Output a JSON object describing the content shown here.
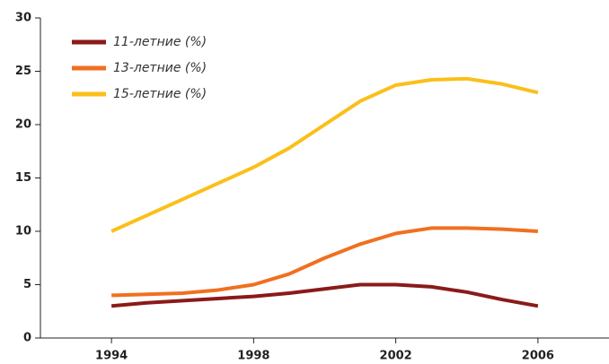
{
  "chart_data": {
    "type": "line",
    "x": [
      1994,
      1995,
      1996,
      1997,
      1998,
      1999,
      2000,
      2001,
      2002,
      2003,
      2004,
      2005,
      2006
    ],
    "series": [
      {
        "name": "11-летние (%)",
        "color": "#8b1a1a",
        "values": [
          3,
          3.3,
          3.5,
          3.7,
          3.9,
          4.2,
          4.6,
          5,
          5,
          4.8,
          4.3,
          3.6,
          3
        ]
      },
      {
        "name": "13-летние (%)",
        "color": "#f07020",
        "values": [
          4,
          4.1,
          4.2,
          4.5,
          5,
          6,
          7.5,
          8.8,
          9.8,
          10.3,
          10.3,
          10.2,
          10
        ]
      },
      {
        "name": "15-летние (%)",
        "color": "#fbbf1a",
        "values": [
          10,
          11.5,
          13,
          14.5,
          16,
          17.8,
          20,
          22.2,
          23.7,
          24.2,
          24.3,
          23.8,
          23
        ]
      }
    ],
    "xlim": [
      1992,
      2008
    ],
    "xticks": [
      1994,
      1998,
      2002,
      2006
    ],
    "ylim": [
      0,
      30
    ],
    "yticks": [
      0,
      5,
      10,
      15,
      20,
      25,
      30
    ],
    "legend": "upper left"
  }
}
